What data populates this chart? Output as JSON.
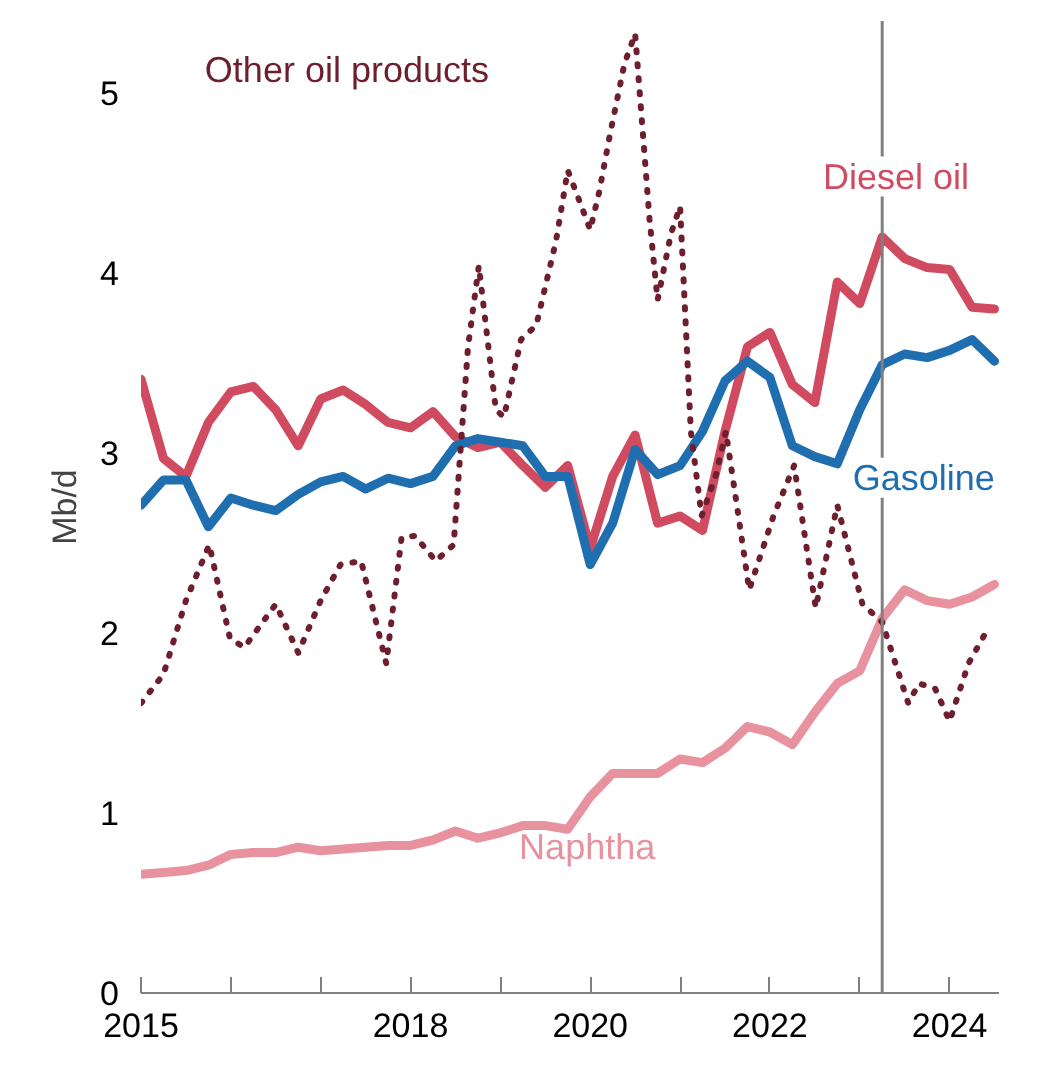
{
  "chart_data": {
    "type": "line",
    "ylabel": "Mb/d",
    "xlim": [
      2015,
      2024.55
    ],
    "ylim": [
      0,
      5.4
    ],
    "xticks": [
      2015,
      {
        "value": 2016,
        "label": null
      },
      {
        "value": 2017,
        "label": null
      },
      2018,
      {
        "value": 2019,
        "label": null
      },
      2020,
      {
        "value": 2021,
        "label": null
      },
      2022,
      {
        "value": 2023,
        "label": null
      },
      2024
    ],
    "yticks": [
      0,
      1,
      2,
      3,
      4,
      5
    ],
    "grid": false,
    "ref_lines": [
      {
        "axis": "x",
        "value": 2023.25,
        "color": "#808080"
      }
    ],
    "series": [
      {
        "name": "Diesel oil",
        "color": "#d04a60",
        "line_style": "solid",
        "x": [
          2015,
          2015.25,
          2015.5,
          2015.75,
          2016,
          2016.25,
          2016.5,
          2016.75,
          2017,
          2017.25,
          2017.5,
          2017.75,
          2018,
          2018.25,
          2018.5,
          2018.75,
          2019,
          2019.25,
          2019.5,
          2019.75,
          2020,
          2020.25,
          2020.5,
          2020.75,
          2021,
          2021.25,
          2021.5,
          2021.75,
          2022,
          2022.25,
          2022.5,
          2022.75,
          2023,
          2023.25,
          2023.5,
          2023.75,
          2024,
          2024.25,
          2024.5
        ],
        "values": [
          3.41,
          2.97,
          2.87,
          3.17,
          3.34,
          3.37,
          3.24,
          3.04,
          3.3,
          3.35,
          3.27,
          3.17,
          3.14,
          3.23,
          3.09,
          3.03,
          3.06,
          2.93,
          2.81,
          2.93,
          2.47,
          2.87,
          3.1,
          2.61,
          2.65,
          2.57,
          3.12,
          3.59,
          3.67,
          3.38,
          3.28,
          3.95,
          3.83,
          4.2,
          4.08,
          4.03,
          4.02,
          3.81,
          3.8
        ]
      },
      {
        "name": "Gasoline",
        "color": "#1f6fb0",
        "line_style": "solid",
        "x": [
          2015,
          2015.25,
          2015.5,
          2015.75,
          2016,
          2016.25,
          2016.5,
          2016.75,
          2017,
          2017.25,
          2017.5,
          2017.75,
          2018,
          2018.25,
          2018.5,
          2018.75,
          2019,
          2019.25,
          2019.5,
          2019.75,
          2020,
          2020.25,
          2020.5,
          2020.75,
          2021,
          2021.25,
          2021.5,
          2021.75,
          2022,
          2022.25,
          2022.5,
          2022.75,
          2023,
          2023.25,
          2023.5,
          2023.75,
          2024,
          2024.25,
          2024.5
        ],
        "values": [
          2.71,
          2.85,
          2.85,
          2.59,
          2.75,
          2.71,
          2.68,
          2.77,
          2.84,
          2.87,
          2.8,
          2.86,
          2.83,
          2.87,
          3.04,
          3.08,
          3.06,
          3.04,
          2.87,
          2.87,
          2.38,
          2.61,
          3.02,
          2.88,
          2.93,
          3.12,
          3.4,
          3.51,
          3.42,
          3.04,
          2.98,
          2.94,
          3.24,
          3.49,
          3.55,
          3.53,
          3.57,
          3.63,
          3.51
        ]
      },
      {
        "name": "Naphtha",
        "color": "#e8919f",
        "line_style": "solid",
        "x": [
          2015,
          2015.25,
          2015.5,
          2015.75,
          2016,
          2016.25,
          2016.5,
          2016.75,
          2017,
          2017.25,
          2017.5,
          2017.75,
          2018,
          2018.25,
          2018.5,
          2018.75,
          2019,
          2019.25,
          2019.5,
          2019.75,
          2020,
          2020.25,
          2020.5,
          2020.75,
          2021,
          2021.25,
          2021.5,
          2021.75,
          2022,
          2022.25,
          2022.5,
          2022.75,
          2023,
          2023.25,
          2023.5,
          2023.75,
          2024,
          2024.25,
          2024.5
        ],
        "values": [
          0.66,
          0.67,
          0.68,
          0.71,
          0.77,
          0.78,
          0.78,
          0.81,
          0.79,
          0.8,
          0.81,
          0.82,
          0.82,
          0.85,
          0.9,
          0.86,
          0.89,
          0.93,
          0.93,
          0.91,
          1.09,
          1.22,
          1.22,
          1.22,
          1.3,
          1.28,
          1.36,
          1.48,
          1.45,
          1.38,
          1.56,
          1.72,
          1.79,
          2.08,
          2.24,
          2.18,
          2.16,
          2.2,
          2.27
        ]
      },
      {
        "name": "Other oil products",
        "color": "#6e1f2e",
        "line_style": "dotted",
        "x": [
          2015,
          2015.25,
          2015.5,
          2015.76,
          2015.99,
          2016.15,
          2016.5,
          2016.75,
          2017.0,
          2017.22,
          2017.45,
          2017.73,
          2017.9,
          2018.05,
          2018.28,
          2018.48,
          2018.64,
          2018.76,
          2018.95,
          2019.04,
          2019.23,
          2019.4,
          2019.62,
          2019.75,
          2019.85,
          2020.0,
          2020.1,
          2020.22,
          2020.38,
          2020.5,
          2020.66,
          2020.75,
          2020.9,
          2021.0,
          2021.12,
          2021.24,
          2021.4,
          2021.51,
          2021.65,
          2021.77,
          2022.04,
          2022.27,
          2022.51,
          2022.75,
          2023.03,
          2023.25,
          2023.54,
          2023.66,
          2023.84,
          2024.0,
          2024.21,
          2024.4
        ],
        "values": [
          1.61,
          1.77,
          2.18,
          2.49,
          1.97,
          1.92,
          2.16,
          1.89,
          2.18,
          2.38,
          2.4,
          1.83,
          2.53,
          2.54,
          2.4,
          2.49,
          3.59,
          4.04,
          3.24,
          3.2,
          3.63,
          3.71,
          4.18,
          4.57,
          4.44,
          4.24,
          4.45,
          4.77,
          5.16,
          5.33,
          4.3,
          3.85,
          4.22,
          4.37,
          3.12,
          2.65,
          2.88,
          3.12,
          2.65,
          2.24,
          2.65,
          2.93,
          2.14,
          2.71,
          2.16,
          2.06,
          1.61,
          1.72,
          1.69,
          1.51,
          1.83,
          2.0
        ]
      }
    ]
  }
}
